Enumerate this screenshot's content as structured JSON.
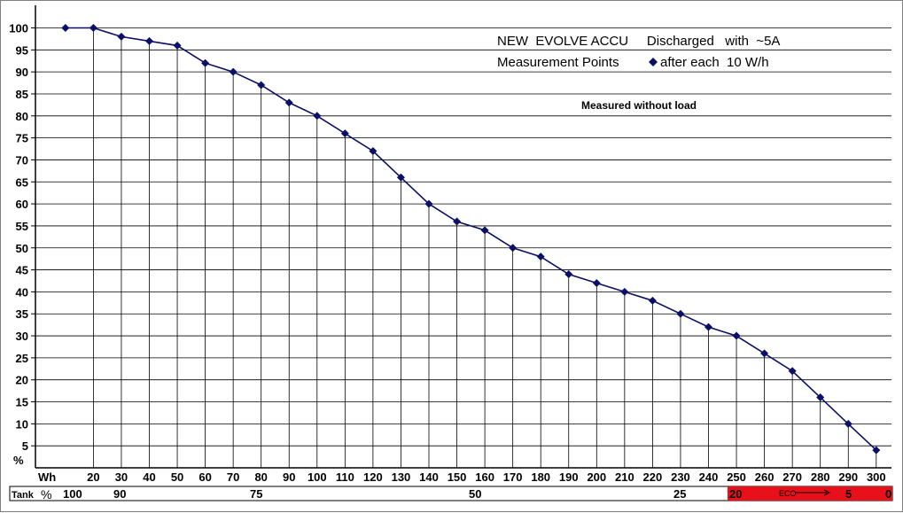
{
  "chart_data": {
    "type": "line",
    "title_line1": "NEW  EVOLVE ACCU     Discharged   with  ~5A",
    "title_line2_prefix": "Measurement Points",
    "title_line2_suffix": "after each  10 W/h",
    "note": "Measured without load",
    "ylabel": "%",
    "xlabel": "Wh",
    "x": [
      10,
      20,
      30,
      40,
      50,
      60,
      70,
      80,
      90,
      100,
      110,
      120,
      130,
      140,
      150,
      160,
      170,
      180,
      190,
      200,
      210,
      220,
      230,
      240,
      250,
      260,
      270,
      280,
      290,
      300
    ],
    "y": [
      100,
      100,
      98,
      97,
      96,
      92,
      90,
      87,
      83,
      80,
      76,
      72,
      66,
      60,
      56,
      54,
      50,
      48,
      44,
      42,
      40,
      38,
      35,
      32,
      30,
      26,
      22,
      16,
      10,
      4
    ],
    "x_ticks": [
      20,
      30,
      40,
      50,
      60,
      70,
      80,
      90,
      100,
      110,
      120,
      130,
      140,
      150,
      160,
      170,
      180,
      190,
      200,
      210,
      220,
      230,
      240,
      250,
      260,
      270,
      280,
      290,
      300
    ],
    "y_ticks": [
      100,
      95,
      90,
      85,
      80,
      75,
      70,
      65,
      60,
      55,
      50,
      45,
      40,
      35,
      30,
      25,
      20,
      15,
      10,
      5
    ],
    "ylim": [
      0,
      100
    ],
    "xlim": [
      0,
      305
    ],
    "marker_color": "#0b1066",
    "line_color": "#0b1066",
    "tank_bar": {
      "label": "Tank",
      "unit": "%",
      "values": [
        "100",
        "90",
        "75",
        "50",
        "25",
        "20",
        "5",
        "0"
      ],
      "eco_label": "ECO",
      "red_color": "#e8101a"
    }
  }
}
